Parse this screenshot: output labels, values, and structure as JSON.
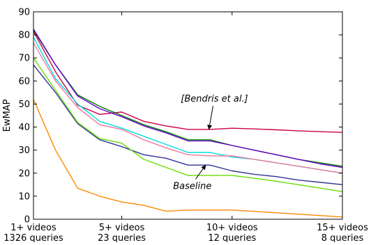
{
  "chart_data": {
    "type": "line",
    "xlabel": "",
    "ylabel": "EwMAP",
    "ylim": [
      0,
      90
    ],
    "yticks": [
      0,
      10,
      20,
      30,
      40,
      50,
      60,
      70,
      80,
      90
    ],
    "xlim": [
      1,
      15
    ],
    "xticks": [
      {
        "x": 1,
        "line1": "1+ videos",
        "line2": "1326 queries"
      },
      {
        "x": 5,
        "line1": "5+ videos",
        "line2": "23 queries"
      },
      {
        "x": 10,
        "line1": "10+ videos",
        "line2": "12 queries"
      },
      {
        "x": 15,
        "line1": "15+ videos",
        "line2": "8 queries"
      }
    ],
    "grid": false,
    "x": [
      1,
      2,
      3,
      4,
      5,
      6,
      7,
      8,
      9,
      10,
      11,
      12,
      13,
      14,
      15
    ],
    "series": [
      {
        "color": "#cc0044",
        "values": [
          81.5,
          64,
          49.5,
          45.5,
          46.5,
          42.5,
          40.5,
          39,
          39,
          39.5,
          39.2,
          38.8,
          38.4,
          38,
          37.7
        ]
      },
      {
        "color": "#008000",
        "values": [
          82,
          67,
          54,
          49,
          45,
          41,
          38,
          34.5,
          34.5,
          32,
          30,
          28,
          26,
          24.5,
          23
        ]
      },
      {
        "color": "#6600cc",
        "values": [
          82.5,
          67,
          53.5,
          48,
          44.5,
          40.5,
          37.5,
          34,
          34,
          32,
          30,
          28,
          26,
          24,
          22.5
        ]
      },
      {
        "color": "#00dddd",
        "values": [
          79,
          61,
          50,
          42.5,
          39.5,
          36,
          32.5,
          29,
          29,
          27,
          26,
          24.5,
          23,
          21.5,
          20
        ]
      },
      {
        "color": "#ee7799",
        "values": [
          76.5,
          60,
          48.5,
          41,
          39,
          34.5,
          31,
          28,
          27.5,
          27.5,
          26,
          24.5,
          23,
          21.5,
          20
        ]
      },
      {
        "color": "#333399",
        "values": [
          67,
          55,
          41.5,
          34.5,
          31.5,
          28,
          26.5,
          23.5,
          23.5,
          21,
          19.5,
          18.5,
          17,
          16,
          15
        ]
      },
      {
        "color": "#66dd00",
        "values": [
          70,
          56,
          42,
          35,
          33,
          26,
          22.5,
          19,
          19,
          19,
          17.8,
          16.5,
          15,
          13.5,
          12
        ]
      },
      {
        "color": "#ff8800",
        "values": [
          52,
          30,
          13.5,
          10,
          7.5,
          6,
          3.5,
          4,
          4,
          4,
          3.4,
          2.8,
          2.2,
          1.6,
          1
        ]
      }
    ],
    "annotations": [
      {
        "text": "[Bendris et al.]",
        "text_at": [
          9.2,
          51
        ],
        "arrow_to": [
          8.95,
          39
        ]
      },
      {
        "text": "Baseline",
        "text_at": [
          8.2,
          13.2
        ],
        "arrow_to": [
          8.8,
          23.5
        ]
      }
    ]
  }
}
